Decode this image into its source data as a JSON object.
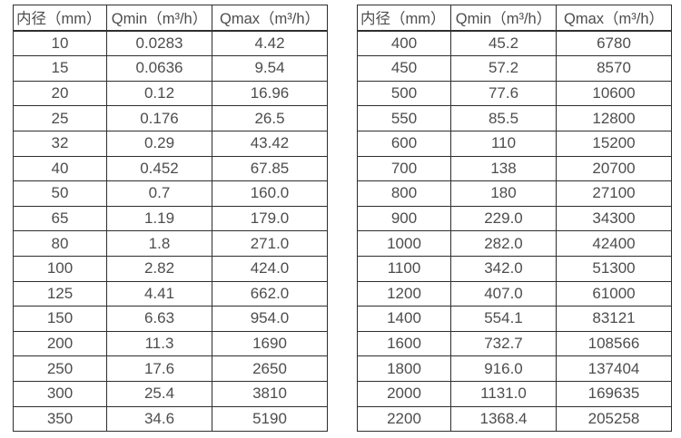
{
  "page": {
    "background_color": "#ffffff",
    "text_color": "#4d4d4d",
    "border_color": "#2e2e2e"
  },
  "tables": [
    {
      "id": "flow-table-left",
      "headers": [
        "内径（mm）",
        "Qmin（m³/h）",
        "Qmax（m³/h）"
      ],
      "rows": [
        [
          "10",
          "0.0283",
          "4.42"
        ],
        [
          "15",
          "0.0636",
          "9.54"
        ],
        [
          "20",
          "0.12",
          "16.96"
        ],
        [
          "25",
          "0.176",
          "26.5"
        ],
        [
          "32",
          "0.29",
          "43.42"
        ],
        [
          "40",
          "0.452",
          "67.85"
        ],
        [
          "50",
          "0.7",
          "160.0"
        ],
        [
          "65",
          "1.19",
          "179.0"
        ],
        [
          "80",
          "1.8",
          "271.0"
        ],
        [
          "100",
          "2.82",
          "424.0"
        ],
        [
          "125",
          "4.41",
          "662.0"
        ],
        [
          "150",
          "6.63",
          "954.0"
        ],
        [
          "200",
          "11.3",
          "1690"
        ],
        [
          "250",
          "17.6",
          "2650"
        ],
        [
          "300",
          "25.4",
          "3810"
        ],
        [
          "350",
          "34.6",
          "5190"
        ]
      ]
    },
    {
      "id": "flow-table-right",
      "headers": [
        "内径（mm）",
        "Qmin（m³/h）",
        "Qmax（m³/h）"
      ],
      "rows": [
        [
          "400",
          "45.2",
          "6780"
        ],
        [
          "450",
          "57.2",
          "8570"
        ],
        [
          "500",
          "77.6",
          "10600"
        ],
        [
          "550",
          "85.5",
          "12800"
        ],
        [
          "600",
          "110",
          "15200"
        ],
        [
          "700",
          "138",
          "20700"
        ],
        [
          "800",
          "180",
          "27100"
        ],
        [
          "900",
          "229.0",
          "34300"
        ],
        [
          "1000",
          "282.0",
          "42400"
        ],
        [
          "1100",
          "342.0",
          "51300"
        ],
        [
          "1200",
          "407.0",
          "61000"
        ],
        [
          "1400",
          "554.1",
          "83121"
        ],
        [
          "1600",
          "732.7",
          "108566"
        ],
        [
          "1800",
          "916.0",
          "137404"
        ],
        [
          "2000",
          "1131.0",
          "169635"
        ],
        [
          "2200",
          "1368.4",
          "205258"
        ]
      ]
    }
  ],
  "chart_data": {
    "type": "table",
    "title": "",
    "columns": [
      "内径（mm）",
      "Qmin（m³/h）",
      "Qmax（m³/h）"
    ],
    "note": "Two-panel table of nominal inner diameter vs minimum and maximum flow rates"
  }
}
